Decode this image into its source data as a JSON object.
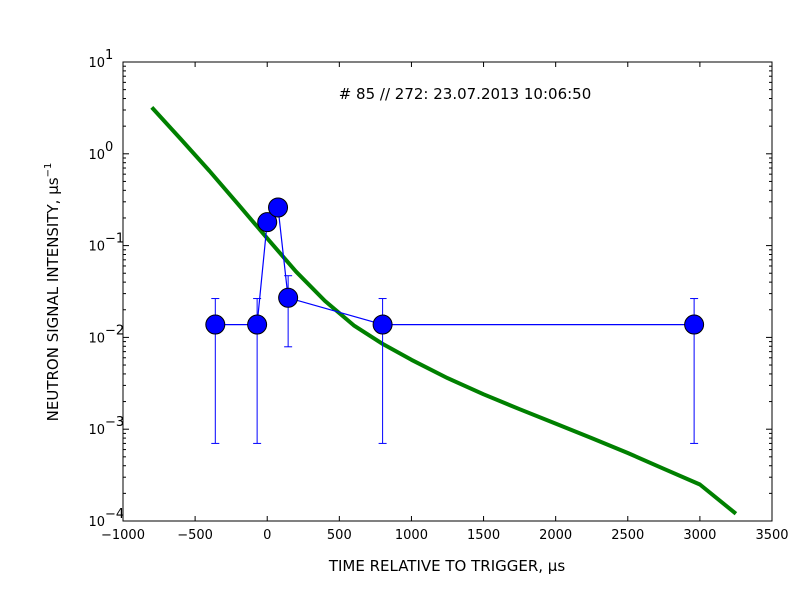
{
  "chart_data": {
    "type": "scatter",
    "title": "# 85 // 272: 23.07.2013 10:06:50",
    "xlabel": "TIME RELATIVE TO TRIGGER, μs",
    "ylabel": "NEUTRON SIGNAL INTENSITY, μs",
    "ylabel_exponent": "−1",
    "xlim": [
      -1000,
      3500
    ],
    "ylim": [
      0.0001,
      10
    ],
    "yscale": "log",
    "x_ticks": [
      -1000,
      -500,
      0,
      500,
      1000,
      1500,
      2000,
      2500,
      3000,
      3500
    ],
    "x_tick_labels": [
      "−1000",
      "−500",
      "0",
      "500",
      "1000",
      "1500",
      "2000",
      "2500",
      "3000",
      "3500"
    ],
    "y_ticks": [
      {
        "value": 0.0001,
        "base": "10",
        "exp": "−4"
      },
      {
        "value": 0.001,
        "base": "10",
        "exp": "−3"
      },
      {
        "value": 0.01,
        "base": "10",
        "exp": "−2"
      },
      {
        "value": 0.1,
        "base": "10",
        "exp": "−1"
      },
      {
        "value": 1,
        "base": "10",
        "exp": "0"
      },
      {
        "value": 10,
        "base": "10",
        "exp": "1"
      }
    ],
    "grid": false,
    "series": [
      {
        "kind": "errorbar",
        "color": "#0000ff",
        "x": [
          -360,
          -70,
          0,
          75,
          145,
          800,
          2960
        ],
        "y": [
          0.0138,
          0.0138,
          0.18,
          0.26,
          0.027,
          0.0138,
          0.0138
        ],
        "err_low": [
          0.0007,
          0.0007,
          null,
          null,
          0.0079,
          0.0007,
          0.0007
        ],
        "err_high": [
          0.0265,
          0.0265,
          null,
          null,
          0.047,
          0.0265,
          0.0265
        ]
      },
      {
        "kind": "line",
        "color": "#008000",
        "x": [
          -800,
          -600,
          -400,
          -200,
          0,
          200,
          400,
          600,
          800,
          1000,
          1250,
          1500,
          1750,
          2000,
          2250,
          2500,
          2750,
          3000,
          3250
        ],
        "y": [
          3.2,
          1.45,
          0.65,
          0.28,
          0.12,
          0.052,
          0.025,
          0.0135,
          0.0085,
          0.0057,
          0.0036,
          0.0024,
          0.00165,
          0.00115,
          0.0008,
          0.00055,
          0.00037,
          0.00025,
          0.00012
        ]
      }
    ]
  }
}
